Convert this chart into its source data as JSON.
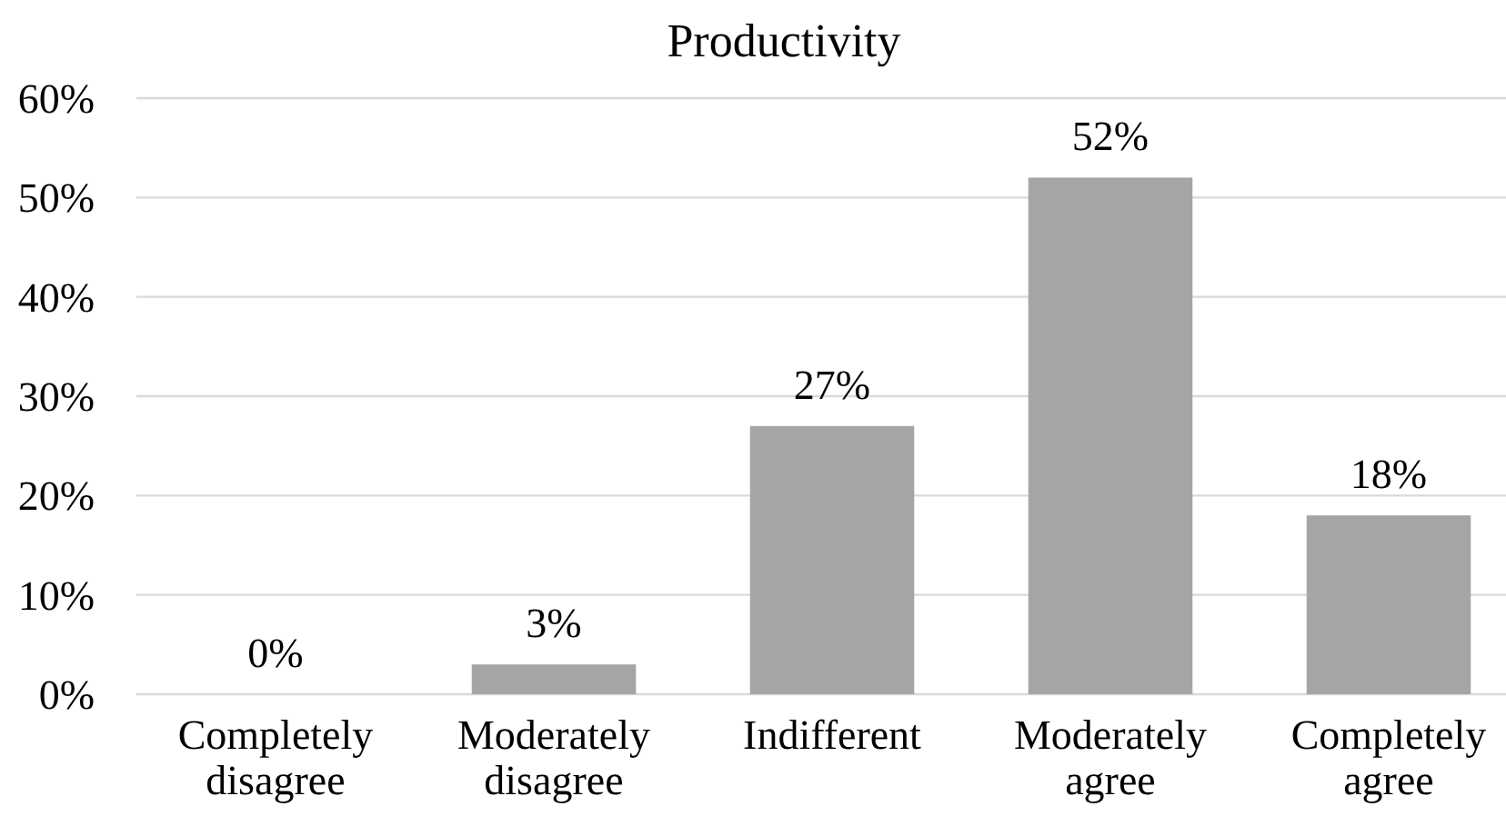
{
  "chart_data": {
    "type": "bar",
    "title": "Productivity",
    "categories": [
      "Completely disagree",
      "Moderately disagree",
      "Indifferent",
      "Moderately agree",
      "Completely agree"
    ],
    "values": [
      0,
      3,
      27,
      52,
      18
    ],
    "color": "#a5a5a5",
    "value_labels": [
      "0%",
      "3%",
      "27%",
      "52%",
      "18%"
    ],
    "ylim": [
      0,
      60
    ],
    "yticks": [
      {
        "value": 0,
        "label": "0%"
      },
      {
        "value": 10,
        "label": "10%"
      },
      {
        "value": 20,
        "label": "20%"
      },
      {
        "value": 30,
        "label": "30%"
      },
      {
        "value": 40,
        "label": "40%"
      },
      {
        "value": 50,
        "label": "50%"
      },
      {
        "value": 60,
        "label": "60%"
      }
    ],
    "grid": "y"
  }
}
